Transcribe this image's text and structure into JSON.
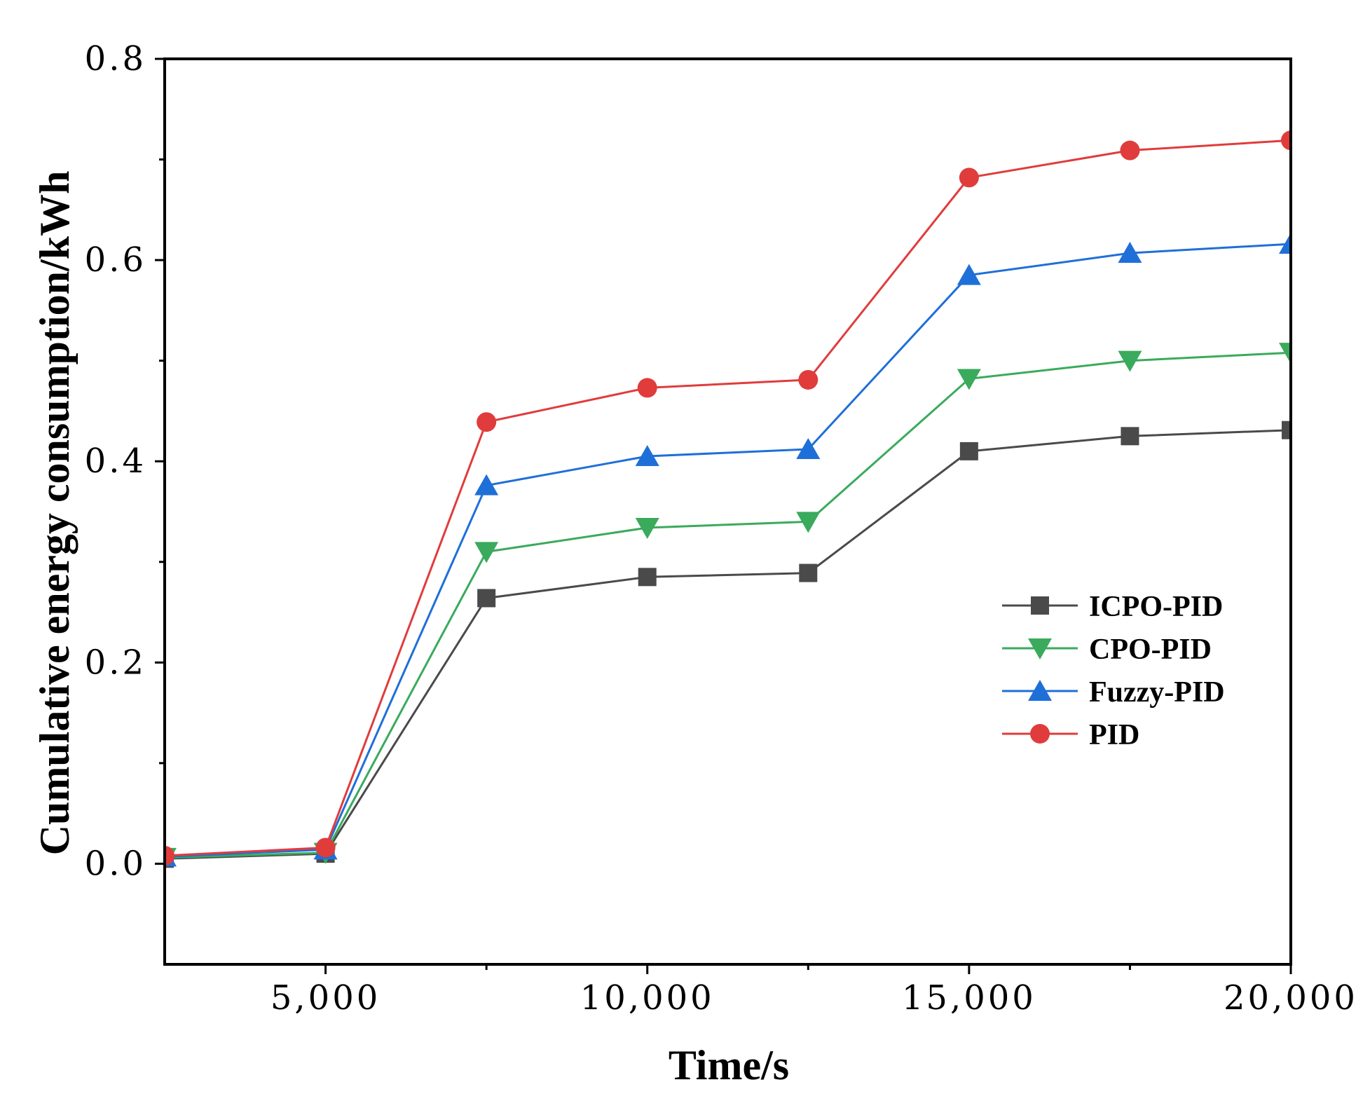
{
  "chart_data": {
    "type": "line",
    "title": "",
    "xlabel": "Time/s",
    "ylabel": "Cumulative energy consumption/kWh",
    "xlim": [
      2500,
      20000
    ],
    "ylim": [
      -0.1,
      0.8
    ],
    "xticks": [
      5000,
      10000,
      15000,
      20000
    ],
    "xtick_labels": [
      "5,000",
      "10,000",
      "15,000",
      "20,000"
    ],
    "yticks": [
      0.0,
      0.2,
      0.4,
      0.6,
      0.8
    ],
    "ytick_labels": [
      "0.0",
      "0.2",
      "0.4",
      "0.6",
      "0.8"
    ],
    "x": [
      2500,
      5000,
      7500,
      10000,
      12500,
      15000,
      17500,
      20000
    ],
    "legend_position": "center-right",
    "series": [
      {
        "name": "ICPO-PID",
        "color": "#4a4a4a",
        "marker": "square",
        "values": [
          0.005,
          0.01,
          0.264,
          0.285,
          0.289,
          0.41,
          0.425,
          0.431
        ]
      },
      {
        "name": "CPO-PID",
        "color": "#3aaa5c",
        "marker": "triangle-down",
        "values": [
          0.006,
          0.011,
          0.31,
          0.334,
          0.34,
          0.482,
          0.5,
          0.508
        ]
      },
      {
        "name": "Fuzzy-PID",
        "color": "#1f6fd8",
        "marker": "triangle-up",
        "values": [
          0.007,
          0.014,
          0.376,
          0.405,
          0.412,
          0.585,
          0.607,
          0.616
        ]
      },
      {
        "name": "PID",
        "color": "#e03c3c",
        "marker": "circle",
        "values": [
          0.008,
          0.016,
          0.439,
          0.473,
          0.481,
          0.682,
          0.709,
          0.719
        ]
      }
    ]
  }
}
